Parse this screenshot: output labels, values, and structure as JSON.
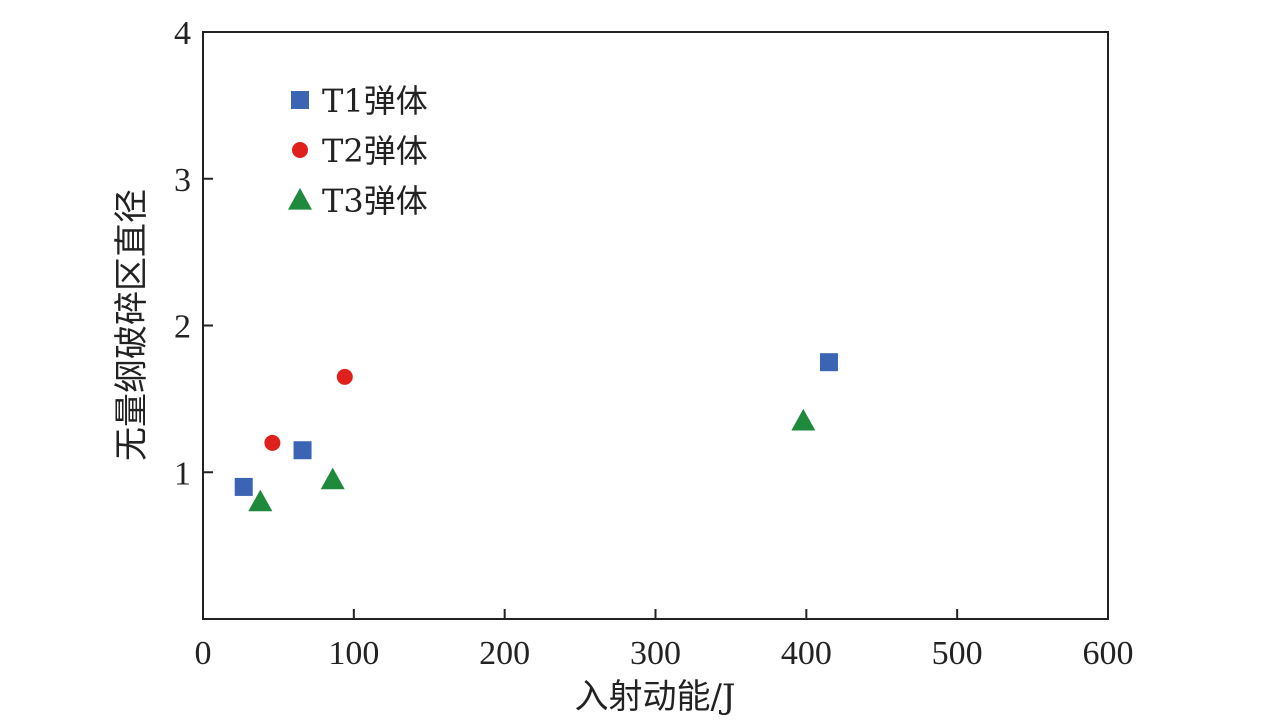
{
  "chart_data": {
    "type": "scatter",
    "title": "",
    "xlabel": "入射动能/J",
    "ylabel": "无量纲破碎区直径",
    "xlim": [
      0,
      600
    ],
    "ylim": [
      0,
      4
    ],
    "x_ticks": [
      "0",
      "100",
      "200",
      "300",
      "400",
      "500",
      "600"
    ],
    "y_ticks": [
      "1",
      "2",
      "3",
      "4"
    ],
    "grid": false,
    "legend_position": "top-left",
    "series": [
      {
        "name": "T1弹体",
        "marker": "square",
        "color": "#3b64b4",
        "points": [
          {
            "x": 27,
            "y": 0.9
          },
          {
            "x": 66,
            "y": 1.15
          },
          {
            "x": 415,
            "y": 1.75
          }
        ]
      },
      {
        "name": "T2弹体",
        "marker": "circle",
        "color": "#e0201c",
        "points": [
          {
            "x": 46,
            "y": 1.2
          },
          {
            "x": 94,
            "y": 1.65
          }
        ]
      },
      {
        "name": "T3弹体",
        "marker": "triangle",
        "color": "#1f8a3c",
        "points": [
          {
            "x": 38,
            "y": 0.8
          },
          {
            "x": 86,
            "y": 0.95
          },
          {
            "x": 398,
            "y": 1.35
          }
        ]
      }
    ]
  }
}
